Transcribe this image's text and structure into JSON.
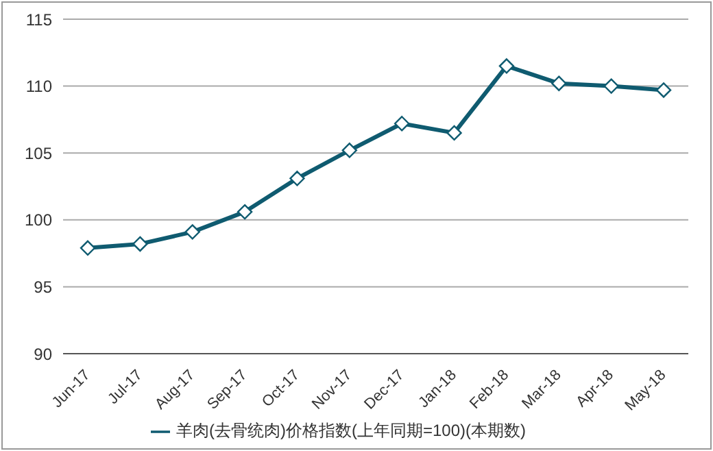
{
  "chart_data": {
    "type": "line",
    "categories": [
      "Jun-17",
      "Jul-17",
      "Aug-17",
      "Sep-17",
      "Oct-17",
      "Nov-17",
      "Dec-17",
      "Jan-18",
      "Feb-18",
      "Mar-18",
      "Apr-18",
      "May-18"
    ],
    "series": [
      {
        "name": "羊肉(去骨统肉)价格指数(上年同期=100)(本期数)",
        "color": "#0f5b70",
        "values": [
          97.9,
          98.2,
          99.1,
          100.6,
          103.1,
          105.2,
          107.2,
          106.5,
          111.5,
          110.2,
          110.0,
          109.7
        ]
      }
    ],
    "ylim": [
      90,
      115
    ],
    "yticks": [
      90,
      95,
      100,
      105,
      110,
      115
    ],
    "grid": "y",
    "legend": "bottom",
    "marker": "diamond",
    "line_style": "solid"
  }
}
